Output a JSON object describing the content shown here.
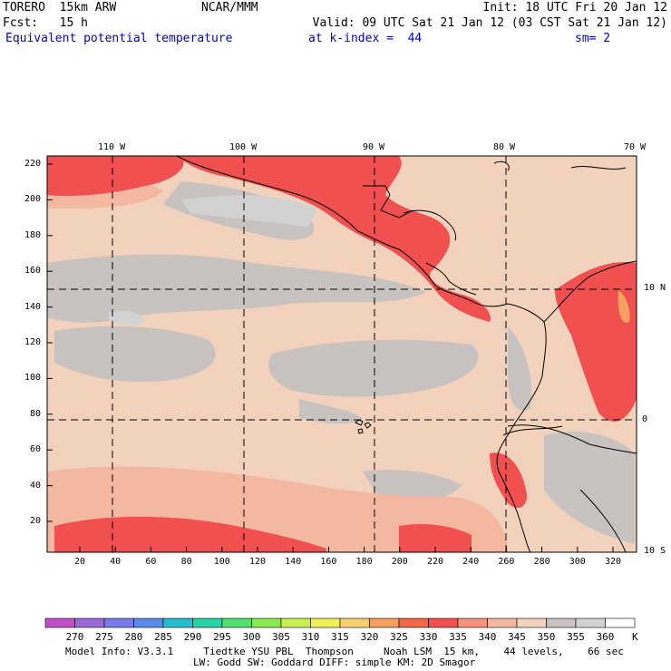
{
  "header": {
    "line1_left": "TORERO  15km ARW",
    "line1_mid": "NCAR/MMM",
    "line1_right": "Init: 18 UTC Fri 20 Jan 12",
    "line2_left": "Fcst:   15 h",
    "line2_right": "Valid: 09 UTC Sat 21 Jan 12 (03 CST Sat 21 Jan 12)",
    "field": "Equivalent potential temperature",
    "level": "at k-index =  44",
    "smooth": "sm= 2"
  },
  "map": {
    "lon_labels": [
      "110 W",
      "100 W",
      "90 W",
      "80 W",
      "70 W"
    ],
    "lat_labels": [
      "10 N",
      "0",
      "10 S"
    ],
    "x_ticks": [
      "20",
      "40",
      "60",
      "80",
      "100",
      "120",
      "140",
      "160",
      "180",
      "200",
      "220",
      "240",
      "260",
      "280",
      "300",
      "320"
    ],
    "y_ticks": [
      "220",
      "200",
      "180",
      "160",
      "140",
      "120",
      "100",
      "80",
      "60",
      "40",
      "20"
    ]
  },
  "colorbar": {
    "labels": [
      "270",
      "275",
      "280",
      "285",
      "290",
      "295",
      "300",
      "305",
      "310",
      "315",
      "320",
      "325",
      "330",
      "335",
      "340",
      "345",
      "350",
      "355",
      "360"
    ],
    "unit": "K",
    "colors": [
      "#c050c8",
      "#9a6ad8",
      "#7a7ae8",
      "#5a8ae8",
      "#2abcd0",
      "#2ad2a8",
      "#52e070",
      "#8ae852",
      "#c8f052",
      "#f0f05a",
      "#f8d070",
      "#f4a060",
      "#f06848",
      "#f05050",
      "#f69080",
      "#f4b8a0",
      "#f2d2bc",
      "#c8c2c0",
      "#d2d2d2",
      "#ffffff"
    ]
  },
  "footer": {
    "line1": "Model Info: V3.3.1     Tiedtke YSU PBL  Thompson     Noah LSM  15 km,    44 levels,    66 sec",
    "line2": "LW: Godd SW: Goddard DIFF: simple KM: 2D Smagor"
  }
}
